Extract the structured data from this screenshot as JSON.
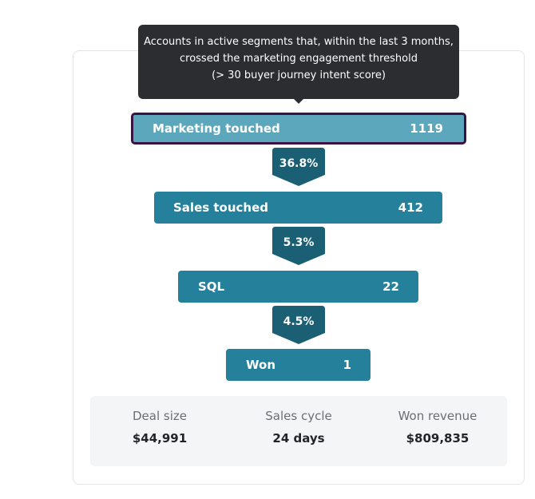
{
  "tooltip": {
    "line1": "Accounts in active segments that, within the last 3 months,",
    "line2": "crossed the marketing engagement threshold",
    "line3": "(> 30 buyer journey intent score)"
  },
  "funnel": {
    "stages": [
      {
        "label": "Marketing touched",
        "value": "1119"
      },
      {
        "label": "Sales touched",
        "value": "412"
      },
      {
        "label": "SQL",
        "value": "22"
      },
      {
        "label": "Won",
        "value": "1"
      }
    ],
    "conversions": [
      "36.8%",
      "5.3%",
      "4.5%"
    ]
  },
  "stats": [
    {
      "label": "Deal size",
      "value": "$44,991"
    },
    {
      "label": "Sales cycle",
      "value": "24 days"
    },
    {
      "label": "Won revenue",
      "value": "$809,835"
    }
  ],
  "colors": {
    "bar": "#25809b",
    "bar_active": "#5da7bd",
    "bar_active_border": "#3a1344",
    "conversion_badge": "#1a5f73",
    "tooltip": "#2b2d30"
  }
}
